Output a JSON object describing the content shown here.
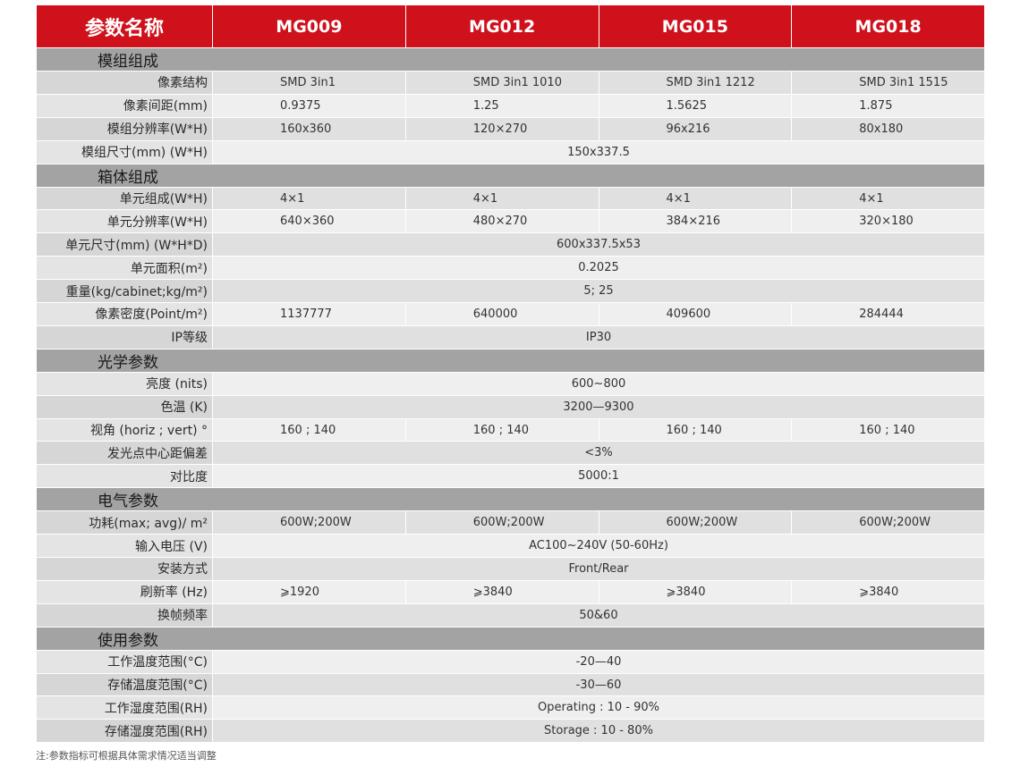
{
  "header": {
    "label": "参数名称",
    "models": [
      "MG009",
      "MG012",
      "MG015",
      "MG018"
    ]
  },
  "sections": [
    {
      "title": "模组组成",
      "rows": [
        {
          "label": "像素结构",
          "values": [
            "SMD 3in1",
            "SMD 3in1 1010",
            "SMD 3in1 1212",
            "SMD 3in1 1515"
          ]
        },
        {
          "label": "像素间距(mm)",
          "values": [
            "0.9375",
            "1.25",
            "1.5625",
            "1.875"
          ]
        },
        {
          "label": "模组分辨率(W*H)",
          "values": [
            "160x360",
            "120×270",
            "96x216",
            "80x180"
          ]
        },
        {
          "label": "模组尺寸(mm) (W*H)",
          "span": "150x337.5"
        }
      ]
    },
    {
      "title": "箱体组成",
      "rows": [
        {
          "label": "单元组成(W*H)",
          "values": [
            "4×1",
            "4×1",
            "4×1",
            "4×1"
          ]
        },
        {
          "label": "单元分辨率(W*H)",
          "values": [
            "640×360",
            "480×270",
            "384×216",
            "320×180"
          ]
        },
        {
          "label": "单元尺寸(mm) (W*H*D)",
          "span": "600x337.5x53"
        },
        {
          "label": "单元面积(m²)",
          "span": "0.2025"
        },
        {
          "label": "重量(kg/cabinet;kg/m²)",
          "span": "5; 25"
        },
        {
          "label": "像素密度(Point/m²)",
          "values": [
            "1137777",
            "640000",
            "409600",
            "284444"
          ]
        },
        {
          "label": "IP等级",
          "span": "IP30"
        }
      ]
    },
    {
      "title": "光学参数",
      "rows": [
        {
          "label": "亮度 (nits)",
          "span": "600~800"
        },
        {
          "label": "色温 (K)",
          "span": "3200—9300"
        },
        {
          "label": "视角 (horiz ; vert) °",
          "values": [
            "160 ; 140",
            "160 ; 140",
            "160 ; 140",
            "160 ; 140"
          ]
        },
        {
          "label": "发光点中心距偏差",
          "span": "<3%"
        },
        {
          "label": "对比度",
          "span": "5000:1"
        }
      ]
    },
    {
      "title": "电气参数",
      "rows": [
        {
          "label": "功耗(max; avg)/ m²",
          "values": [
            "600W;200W",
            "600W;200W",
            "600W;200W",
            "600W;200W"
          ]
        },
        {
          "label": "输入电压 (V)",
          "span": "AC100~240V (50-60Hz)"
        },
        {
          "label": "安装方式",
          "span": "Front/Rear"
        },
        {
          "label": "刷新率 (Hz)",
          "values": [
            "⩾1920",
            "⩾3840",
            "⩾3840",
            "⩾3840"
          ]
        },
        {
          "label": "换帧频率",
          "span": "50&60"
        }
      ]
    },
    {
      "title": "使用参数",
      "rows": [
        {
          "label": "工作温度范围(°C)",
          "span": "-20—40"
        },
        {
          "label": "存储温度范围(°C)",
          "span": "-30—60"
        },
        {
          "label": "工作湿度范围(RH)",
          "span": "Operating : 10 - 90%"
        },
        {
          "label": "存储湿度范围(RH)",
          "span": "Storage : 10 - 80%"
        }
      ]
    }
  ],
  "note": "注:参数指标可根据具体需求情况适当调整",
  "colors": {
    "header": "#cf111b",
    "section": "#a3a3a3"
  }
}
